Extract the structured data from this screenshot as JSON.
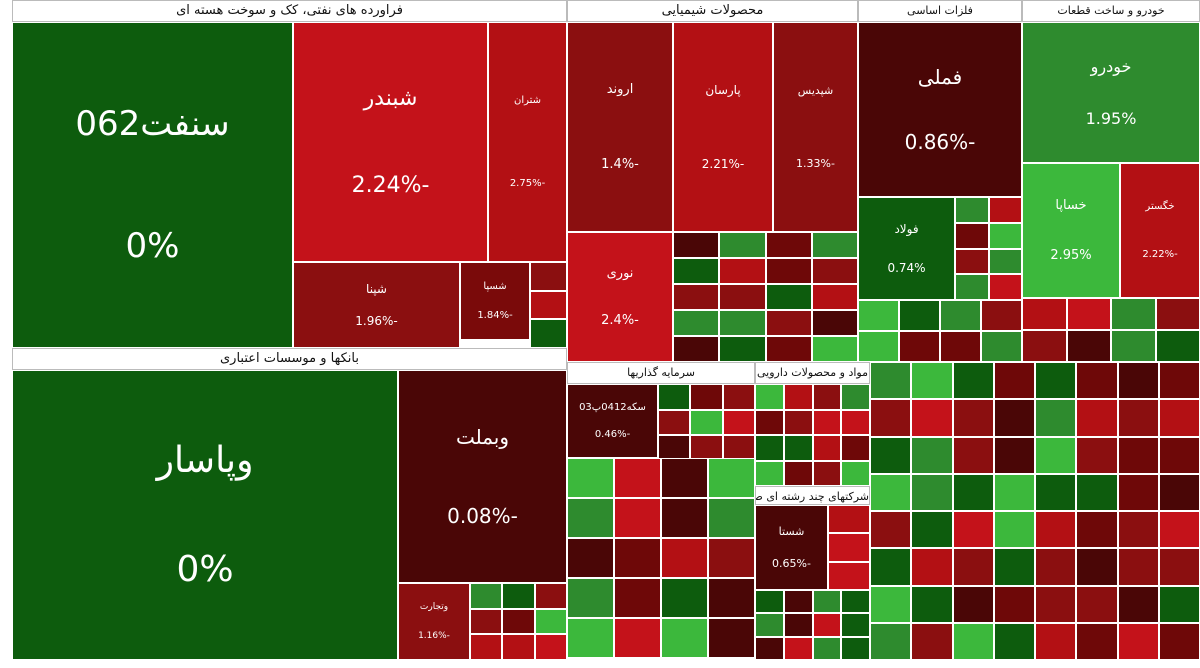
{
  "sectors": [
    {
      "title": "فراورده های نفتی، کک و سوخت هسته ای",
      "tiles": [
        {
          "name": "سنفت062",
          "change": "0%",
          "color": "#0d5c0d"
        },
        {
          "name": "شبندر",
          "change": "-2.24%",
          "color": "#c4121a"
        },
        {
          "name": "شتران",
          "change": "-2.75%",
          "color": "#b31014"
        },
        {
          "name": "شپنا",
          "change": "-1.96%",
          "color": "#8b0f10"
        },
        {
          "name": "شسپا",
          "change": "-1.84%",
          "color": "#7a0a0a"
        }
      ]
    },
    {
      "title": "بانکها و موسسات اعتباری",
      "tiles": [
        {
          "name": "وپاسار",
          "change": "0%",
          "color": "#0d5c0d"
        },
        {
          "name": "وبملت",
          "change": "-0.08%",
          "color": "#4a0606"
        },
        {
          "name": "وتجارت",
          "change": "-1.16%",
          "color": "#8b0f10"
        }
      ]
    },
    {
      "title": "محصولات شیمیایی",
      "tiles": [
        {
          "name": "اروند",
          "change": "-1.4%",
          "color": "#8b0f10"
        },
        {
          "name": "پارسان",
          "change": "-2.21%",
          "color": "#b31014"
        },
        {
          "name": "شپدیس",
          "change": "-1.33%",
          "color": "#8b0f10"
        },
        {
          "name": "نوری",
          "change": "-2.4%",
          "color": "#c4121a"
        }
      ]
    },
    {
      "title": "فلزات اساسی",
      "tiles": [
        {
          "name": "فملی",
          "change": "-0.86%",
          "color": "#4a0606"
        },
        {
          "name": "فولاد",
          "change": "0.74%",
          "color": "#0d5c0d"
        }
      ]
    },
    {
      "title": "خودرو و ساخت قطعات",
      "tiles": [
        {
          "name": "خودرو",
          "change": "1.95%",
          "color": "#2e8b2e"
        },
        {
          "name": "خساپا",
          "change": "2.95%",
          "color": "#3cb83c"
        },
        {
          "name": "خگستر",
          "change": "-2.22%",
          "color": "#b31014"
        }
      ]
    },
    {
      "title": "سرمایه گذاریها",
      "tiles": [
        {
          "name": "سکه0412پ03",
          "change": "-0.46%",
          "color": "#4a0606"
        }
      ]
    },
    {
      "title": "مواد و محصولات دارویی",
      "tiles": []
    },
    {
      "title": "شرکتهای چند رشته ای صنعتی",
      "tiles": [
        {
          "name": "شستا",
          "change": "-0.65%",
          "color": "#4a0606"
        }
      ]
    }
  ]
}
